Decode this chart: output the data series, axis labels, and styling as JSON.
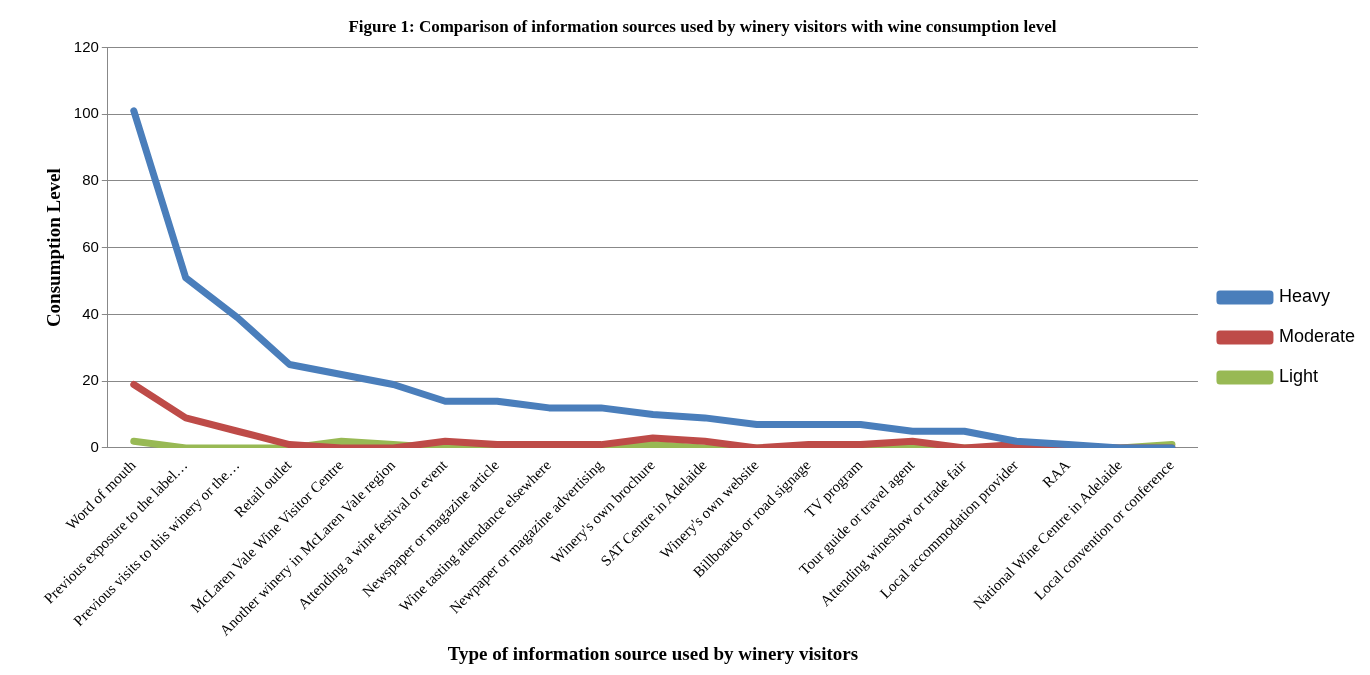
{
  "chart_data": {
    "type": "line",
    "title": "Figure 1: Comparison of information sources used by winery visitors with wine consumption level",
    "xlabel": "Type of information source used by winery visitors",
    "ylabel": "Consumption Level",
    "categories": [
      "Word of mouth",
      "Previous exposure to the label…",
      "Previous visits to this winery or the…",
      "Retail outlet",
      "McLaren Vale Wine Visitor Centre",
      "Another winery in McLaren Vale region",
      "Attending a wine festival or event",
      "Newspaper or magazine article",
      "Wine tasting attendance elsewhere",
      "Newpaper or magazine advertising",
      "Winery's own brochure",
      "SAT Centre in Adelaide",
      "Winery's own website",
      "Billboards or road signage",
      "TV program",
      "Tour guide or travel agent",
      "Attending wineshow or trade fair",
      "Local accommodation provider",
      "RAA",
      "National Wine Centre in Adelaide",
      "Local convention or conference"
    ],
    "series": [
      {
        "name": "Heavy",
        "color": "#4a7ebb",
        "values": [
          101,
          51,
          39,
          25,
          22,
          19,
          14,
          14,
          12,
          12,
          10,
          9,
          7,
          7,
          7,
          5,
          5,
          2,
          1,
          0,
          0
        ]
      },
      {
        "name": "Moderate",
        "color": "#be4b48",
        "values": [
          19,
          9,
          5,
          1,
          0,
          0,
          2,
          1,
          1,
          1,
          3,
          2,
          0,
          1,
          1,
          2,
          0,
          1,
          0,
          0,
          0
        ]
      },
      {
        "name": "Light",
        "color": "#98b954",
        "values": [
          2,
          0,
          0,
          0,
          2,
          1,
          0,
          0,
          0,
          0,
          1,
          0,
          0,
          0,
          0,
          0,
          0,
          0,
          0,
          0,
          1
        ]
      }
    ],
    "ylim": [
      0,
      120
    ],
    "yticks": [
      0,
      20,
      40,
      60,
      80,
      100,
      120
    ],
    "grid": "y",
    "legend": "right",
    "marker": "none",
    "line_style": "solid"
  }
}
